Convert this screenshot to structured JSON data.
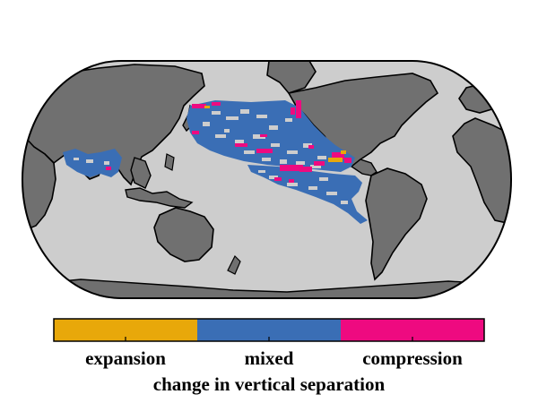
{
  "legend": {
    "title": "change in vertical separation",
    "categories": [
      {
        "label": "expansion",
        "color": "#E8A80A"
      },
      {
        "label": "mixed",
        "color": "#3A6EB5"
      },
      {
        "label": "compression",
        "color": "#EE0A80"
      }
    ]
  },
  "map": {
    "projection": "pseudocylindrical world map, Pacific-centred",
    "ocean_color": "#CDCDCD",
    "land_color": "#707070",
    "outline_color": "#000000"
  }
}
